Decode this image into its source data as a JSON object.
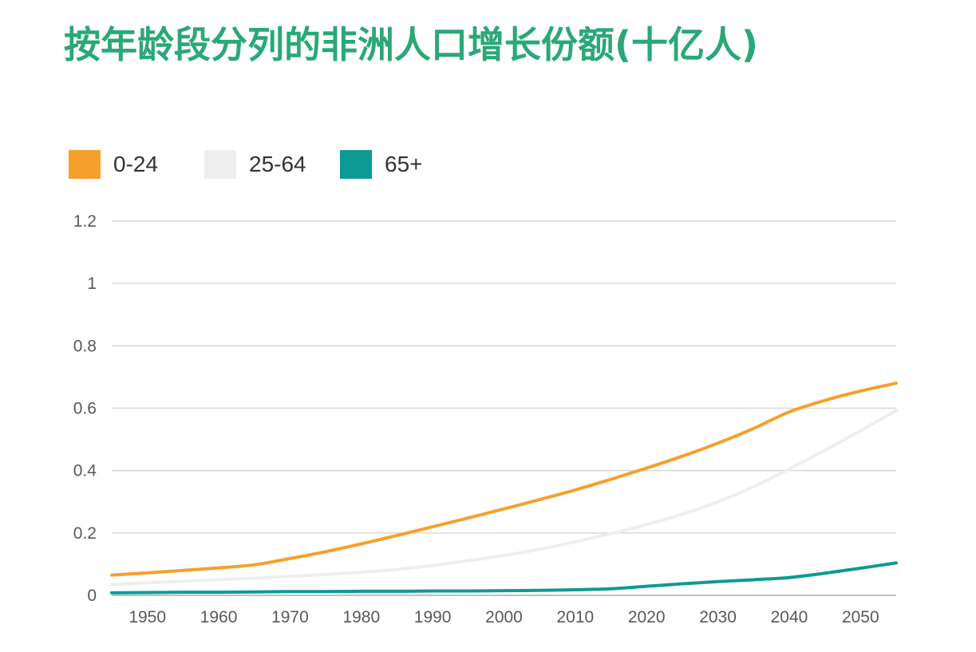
{
  "title": "按年龄段分列的非洲人口增长份额(十亿人)",
  "colors": {
    "title": "#2aa877",
    "series_0_24": "#f5a02c",
    "series_25_64": "#eeeeee",
    "series_65_plus": "#0e9a94",
    "grid": "#d9d9d9",
    "tick_text": "#595959"
  },
  "chart_data": {
    "type": "line",
    "title": "按年龄段分列的非洲人口增长份额(十亿人)",
    "xlabel": "",
    "ylabel": "",
    "xlim": [
      1945,
      2055
    ],
    "ylim": [
      0,
      1.2
    ],
    "x_ticks": [
      1950,
      1960,
      1970,
      1980,
      1990,
      2000,
      2010,
      2020,
      2030,
      2040,
      2050
    ],
    "y_ticks": [
      0,
      0.2,
      0.4,
      0.6,
      0.8,
      1,
      1.2
    ],
    "y_tick_labels": [
      "0",
      "0.2",
      "0.4",
      "0.6",
      "0.8",
      "1",
      "1.2"
    ],
    "grid": true,
    "legend_position": "top-left",
    "x": [
      1945,
      1950,
      1955,
      1960,
      1965,
      1970,
      1975,
      1980,
      1985,
      1990,
      1995,
      2000,
      2005,
      2010,
      2015,
      2020,
      2025,
      2030,
      2035,
      2040,
      2045,
      2050,
      2055
    ],
    "series": [
      {
        "name": "0-24",
        "color": "#f5a02c",
        "values": [
          0.065,
          0.072,
          0.08,
          0.088,
          0.098,
          0.118,
          0.14,
          0.165,
          0.192,
          0.22,
          0.248,
          0.277,
          0.307,
          0.338,
          0.372,
          0.408,
          0.446,
          0.488,
          0.535,
          0.588,
          0.625,
          0.655,
          0.68
        ]
      },
      {
        "name": "25-64",
        "color": "#eeeeee",
        "values": [
          0.035,
          0.04,
          0.045,
          0.05,
          0.055,
          0.061,
          0.067,
          0.074,
          0.083,
          0.096,
          0.111,
          0.128,
          0.148,
          0.172,
          0.198,
          0.227,
          0.26,
          0.3,
          0.348,
          0.405,
          0.465,
          0.528,
          0.592
        ]
      },
      {
        "name": "65+",
        "color": "#0e9a94",
        "values": [
          0.008,
          0.009,
          0.01,
          0.01,
          0.011,
          0.012,
          0.012,
          0.013,
          0.013,
          0.014,
          0.014,
          0.015,
          0.016,
          0.018,
          0.021,
          0.029,
          0.037,
          0.044,
          0.05,
          0.057,
          0.071,
          0.087,
          0.104
        ]
      }
    ]
  }
}
